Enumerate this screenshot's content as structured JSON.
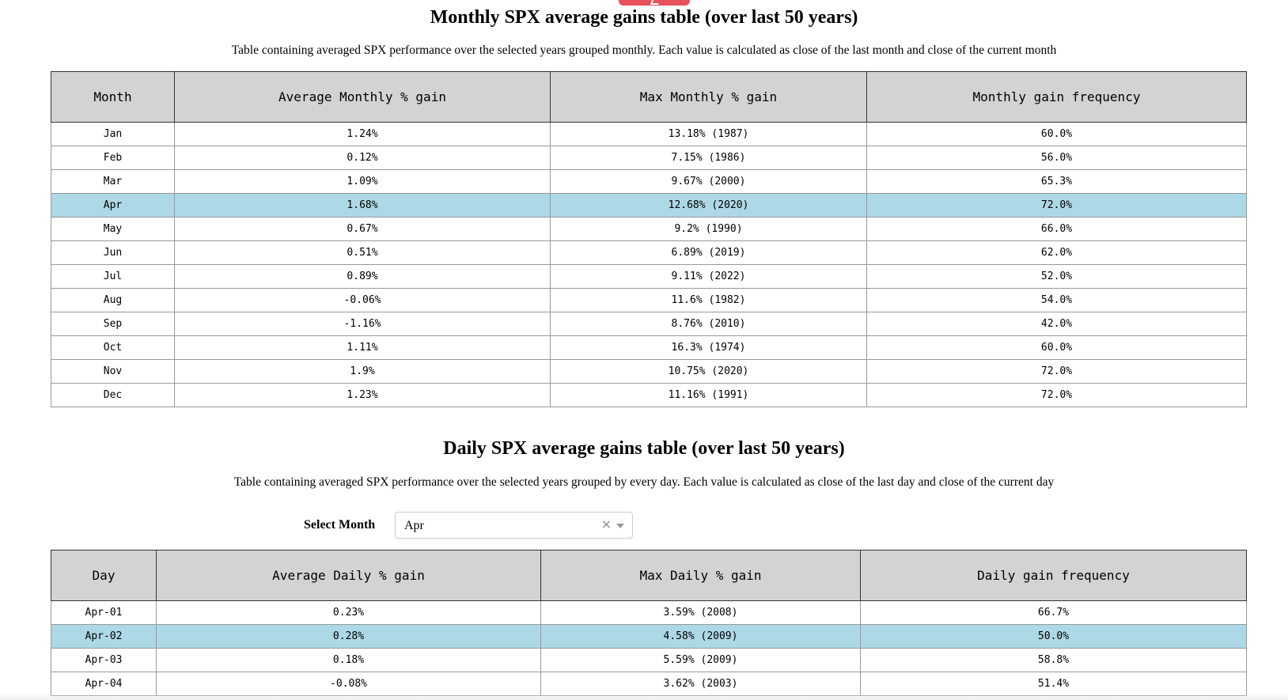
{
  "monthly": {
    "title": "Monthly SPX average gains table (over last 50 years)",
    "description": "Table containing averaged SPX performance over the selected years grouped monthly. Each value is calculated as close of the last month and close of the current month",
    "headers": [
      "Month",
      "Average Monthly % gain",
      "Max Monthly % gain",
      "Monthly gain frequency"
    ],
    "highlighted_row": 3,
    "rows": [
      [
        "Jan",
        "1.24%",
        "13.18% (1987)",
        "60.0%"
      ],
      [
        "Feb",
        "0.12%",
        "7.15% (1986)",
        "56.0%"
      ],
      [
        "Mar",
        "1.09%",
        "9.67% (2000)",
        "65.3%"
      ],
      [
        "Apr",
        "1.68%",
        "12.68% (2020)",
        "72.0%"
      ],
      [
        "May",
        "0.67%",
        "9.2% (1990)",
        "66.0%"
      ],
      [
        "Jun",
        "0.51%",
        "6.89% (2019)",
        "62.0%"
      ],
      [
        "Jul",
        "0.89%",
        "9.11% (2022)",
        "52.0%"
      ],
      [
        "Aug",
        "-0.06%",
        "11.6% (1982)",
        "54.0%"
      ],
      [
        "Sep",
        "-1.16%",
        "8.76% (2010)",
        "42.0%"
      ],
      [
        "Oct",
        "1.11%",
        "16.3% (1974)",
        "60.0%"
      ],
      [
        "Nov",
        "1.9%",
        "10.75% (2020)",
        "72.0%"
      ],
      [
        "Dec",
        "1.23%",
        "11.16% (1991)",
        "72.0%"
      ]
    ]
  },
  "daily": {
    "title": "Daily SPX average gains table (over last 50 years)",
    "description": "Table containing averaged SPX performance over the selected years grouped by every day. Each value is calculated as close of the last day and close of the current day",
    "select": {
      "label": "Select Month",
      "value": "Apr",
      "clear_symbol": "×"
    },
    "headers": [
      "Day",
      "Average Daily % gain",
      "Max Daily % gain",
      "Daily gain frequency"
    ],
    "highlighted_row": 1,
    "rows": [
      [
        "Apr-01",
        "0.23%",
        "3.59% (2008)",
        "66.7%"
      ],
      [
        "Apr-02",
        "0.28%",
        "4.58% (2009)",
        "50.0%"
      ],
      [
        "Apr-03",
        "0.18%",
        "5.59% (2009)",
        "58.8%"
      ],
      [
        "Apr-04",
        "-0.08%",
        "3.62% (2003)",
        "51.4%"
      ]
    ]
  },
  "colors": {
    "header_bg": "#d3d3d3",
    "highlight_bg": "#add8e6",
    "top_tab": "#e8505b"
  }
}
